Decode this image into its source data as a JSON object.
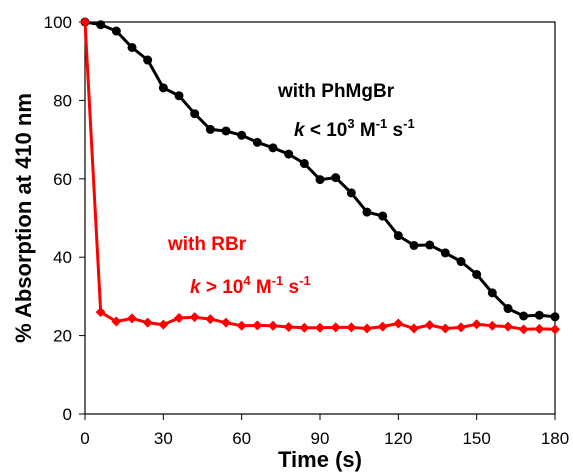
{
  "chart_data": {
    "type": "line",
    "title": "",
    "xlabel": "Time (s)",
    "ylabel": "% Absorption at 410 nm",
    "xlim": [
      0,
      180
    ],
    "ylim": [
      0,
      100
    ],
    "xticks": [
      "0",
      "30",
      "60",
      "90",
      "120",
      "150",
      "180"
    ],
    "yticks": [
      "0",
      "20",
      "40",
      "60",
      "80",
      "100"
    ],
    "grid": false,
    "legend": "none",
    "series": [
      {
        "color": "#000000",
        "marker": "circle",
        "x": [
          0,
          6,
          12,
          18,
          24,
          30,
          36,
          42,
          48,
          54,
          60,
          66,
          72,
          78,
          84,
          90,
          96,
          102,
          108,
          114,
          120,
          126,
          132,
          138,
          144,
          150,
          156,
          162,
          168,
          174,
          180
        ],
        "y": [
          100,
          99.3,
          97.7,
          93.5,
          90.3,
          83.2,
          81.2,
          76.6,
          72.6,
          72.2,
          71.1,
          69.3,
          67.9,
          66.3,
          63.9,
          59.8,
          60.3,
          56.4,
          51.5,
          50.5,
          45.5,
          43,
          43.1,
          41.1,
          38.9,
          35.6,
          30.9,
          26.9,
          25,
          25.2,
          24.8
        ]
      },
      {
        "color": "#ff0000",
        "marker": "diamond",
        "x": [
          0,
          6,
          12,
          18,
          24,
          30,
          36,
          42,
          48,
          54,
          60,
          66,
          72,
          78,
          84,
          90,
          96,
          102,
          108,
          114,
          120,
          126,
          132,
          138,
          144,
          150,
          156,
          162,
          168,
          174,
          180
        ],
        "y": [
          100,
          26,
          23.6,
          24.4,
          23.3,
          22.8,
          24.5,
          24.7,
          24.2,
          23.3,
          22.5,
          22.6,
          22.5,
          22.2,
          22,
          22,
          22.1,
          22.1,
          21.8,
          22.3,
          23.1,
          21.8,
          22.7,
          21.8,
          22.1,
          22.9,
          22.5,
          22.3,
          21.6,
          21.7,
          21.6
        ]
      }
    ],
    "annotations": {
      "black_label": "with PhMgBr",
      "black_k": "k",
      "black_rate_sym": " < 10",
      "black_exp": "3",
      "black_unit1": " M",
      "black_unit1_exp": "-1",
      "black_unit2": " s",
      "black_unit2_exp": "-1",
      "red_label": "with RBr",
      "red_k": "k",
      "red_rate_sym": " > 10",
      "red_exp": "4",
      "red_unit1": " M",
      "red_unit1_exp": "-1",
      "red_unit2": " s",
      "red_unit2_exp": "-1"
    }
  }
}
